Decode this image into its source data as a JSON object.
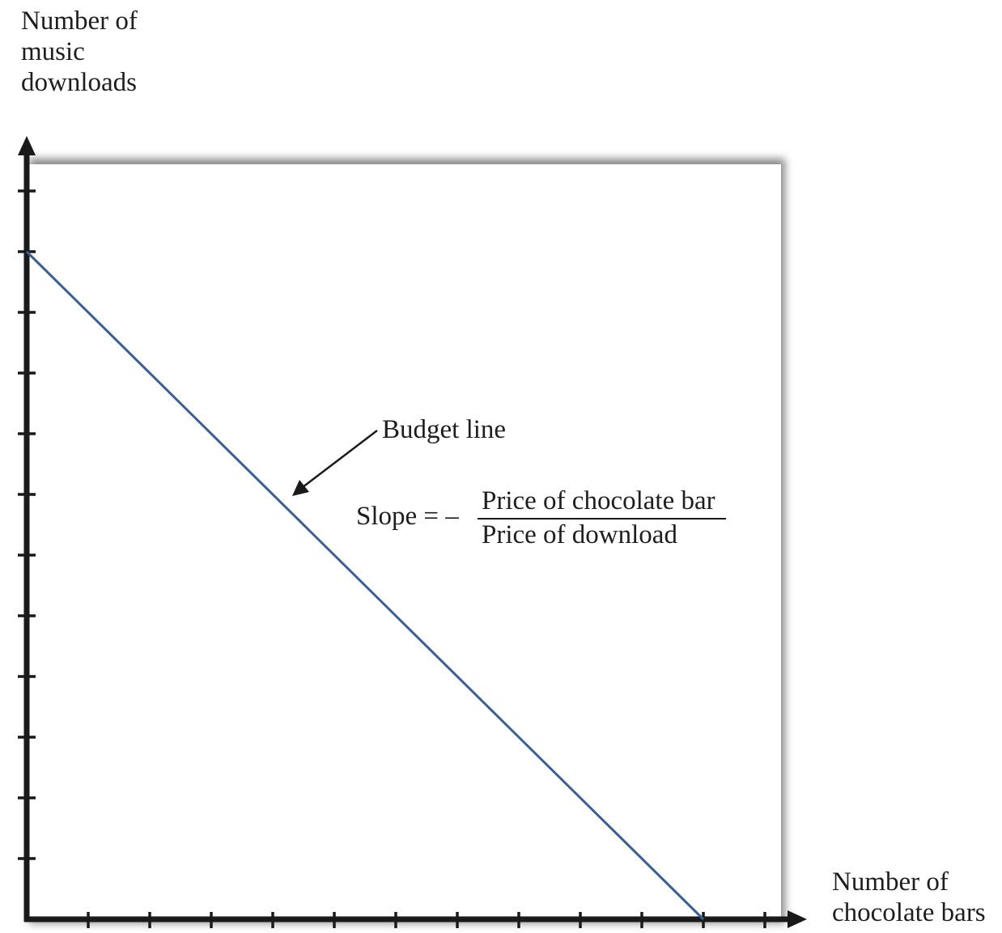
{
  "chart_data": {
    "type": "line",
    "title": "",
    "ylabel_lines": [
      "Number of",
      "music",
      "downloads"
    ],
    "xlabel_lines": [
      "Number of",
      "chocolate bars"
    ],
    "x_ticks": 12,
    "y_ticks": 12,
    "grid": false,
    "series": [
      {
        "name": "Budget line",
        "color": "#3a5f95",
        "x": [
          0,
          11
        ],
        "y": [
          11,
          0
        ]
      }
    ],
    "xlim": [
      0,
      12
    ],
    "ylim": [
      0,
      12
    ],
    "annotations": {
      "budget_line_label": "Budget line",
      "slope_prefix": "Slope = –",
      "slope_numerator": "Price of chocolate bar",
      "slope_denominator": "Price of download"
    }
  },
  "colors": {
    "axis": "#1a1a1a",
    "line": "#3a5f95"
  }
}
